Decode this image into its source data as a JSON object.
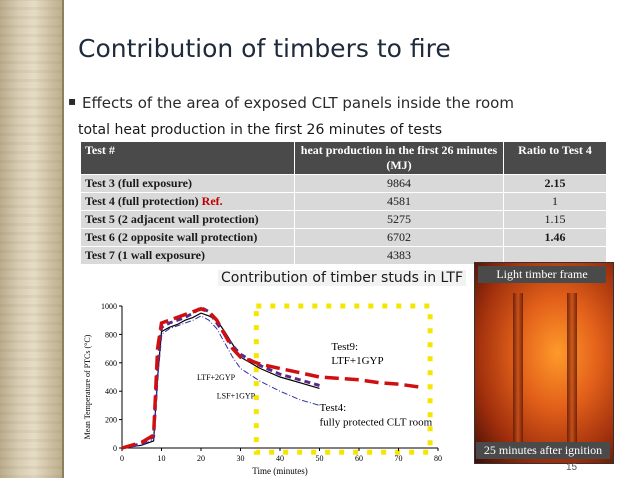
{
  "slide": {
    "title": "Contribution of timbers to fire",
    "bullet": "Effects of the area of exposed CLT panels inside the room",
    "bullet_mark": "▪",
    "subtitle": "total heat production in the first 26 minutes of tests",
    "page_number": "15"
  },
  "table": {
    "headers": [
      "Test #",
      "heat production in the first 26 minutes (MJ)",
      "Ratio to Test 4"
    ],
    "rows": [
      {
        "test": "Test 3 (full exposure)",
        "ref": "",
        "heat": "9864",
        "ratio": "2.15",
        "bold": true
      },
      {
        "test": "Test 4 (full protection)",
        "ref": "Ref.",
        "heat": "4581",
        "ratio": "1",
        "bold": false
      },
      {
        "test": "Test 5 (2 adjacent wall protection)",
        "ref": "",
        "heat": "5275",
        "ratio": "1.15",
        "bold": false
      },
      {
        "test": "Test 6 (2 opposite wall protection)",
        "ref": "",
        "heat": "6702",
        "ratio": "1.46",
        "bold": true
      },
      {
        "test": "Test 7 (1 wall exposure)",
        "ref": "",
        "heat": "4383",
        "ratio": "",
        "bold": false
      }
    ]
  },
  "overlay_label": "Contribution of timber studs in LTF",
  "photo": {
    "top_label": "Light timber frame",
    "bottom_label": "25 minutes after ignition"
  },
  "colors": {
    "header_bg": "#4a4a4a",
    "cell_bg": "#d9d9d9",
    "ref_red": "#c00000",
    "highlight_yellow": "#f5e600",
    "series_purple": "#5b2a86",
    "series_red": "#d01010"
  },
  "chart_data": {
    "type": "line",
    "xlabel": "Time (minutes)",
    "ylabel": "Mean Temperature of PTCs (°C)",
    "xlim": [
      0,
      80
    ],
    "ylim": [
      0,
      1000
    ],
    "x_ticks": [
      0,
      10,
      20,
      30,
      40,
      50,
      60,
      70,
      80
    ],
    "y_ticks": [
      0,
      200,
      400,
      600,
      800,
      1000
    ],
    "grid": false,
    "series": [
      {
        "name": "Test4: fully protected CLT room",
        "style": "solid",
        "color": "#000000",
        "x": [
          0,
          5,
          8,
          9,
          10,
          12,
          14,
          16,
          18,
          20,
          22,
          24,
          26,
          28,
          30,
          35,
          40,
          45,
          50
        ],
        "y": [
          0,
          20,
          50,
          500,
          820,
          850,
          870,
          900,
          920,
          950,
          930,
          900,
          820,
          730,
          640,
          560,
          500,
          460,
          420
        ]
      },
      {
        "name": "LTF+2GYP",
        "style": "dash",
        "color": "#5b2a86",
        "x": [
          0,
          5,
          8,
          9,
          10,
          12,
          14,
          16,
          18,
          20,
          22,
          24,
          26,
          28,
          30,
          35,
          40,
          45,
          50
        ],
        "y": [
          0,
          30,
          80,
          560,
          850,
          880,
          900,
          920,
          950,
          990,
          960,
          880,
          800,
          720,
          660,
          580,
          520,
          480,
          440
        ]
      },
      {
        "name": "LSF+1GYP",
        "style": "dashdot",
        "color": "#3030a0",
        "x": [
          0,
          5,
          8,
          9,
          10,
          12,
          14,
          16,
          18,
          20,
          22,
          24,
          26,
          28,
          30,
          35,
          40,
          45,
          50
        ],
        "y": [
          0,
          20,
          60,
          480,
          800,
          840,
          860,
          880,
          900,
          930,
          900,
          840,
          740,
          640,
          560,
          470,
          400,
          340,
          300
        ]
      },
      {
        "name": "Test9: LTF+1GYP",
        "style": "longdash",
        "color": "#d01010",
        "x": [
          0,
          5,
          8,
          9,
          10,
          12,
          14,
          16,
          18,
          20,
          22,
          24,
          26,
          28,
          30,
          35,
          40,
          45,
          50,
          55,
          60,
          65,
          70,
          75
        ],
        "y": [
          0,
          40,
          90,
          700,
          880,
          900,
          920,
          940,
          960,
          980,
          960,
          900,
          800,
          700,
          640,
          590,
          560,
          530,
          500,
          490,
          480,
          460,
          450,
          430
        ]
      }
    ],
    "annotations": [
      {
        "text": "Test9:",
        "x": 53,
        "y": 690
      },
      {
        "text": "LTF+1GYP",
        "x": 53,
        "y": 590
      },
      {
        "text": "LTF+2GYP",
        "x": 19,
        "y": 480
      },
      {
        "text": "LSF+1GYP",
        "x": 24,
        "y": 350
      },
      {
        "text": "Test4:",
        "x": 50,
        "y": 260
      },
      {
        "text": "fully protected CLT room",
        "x": 50,
        "y": 160
      }
    ]
  }
}
